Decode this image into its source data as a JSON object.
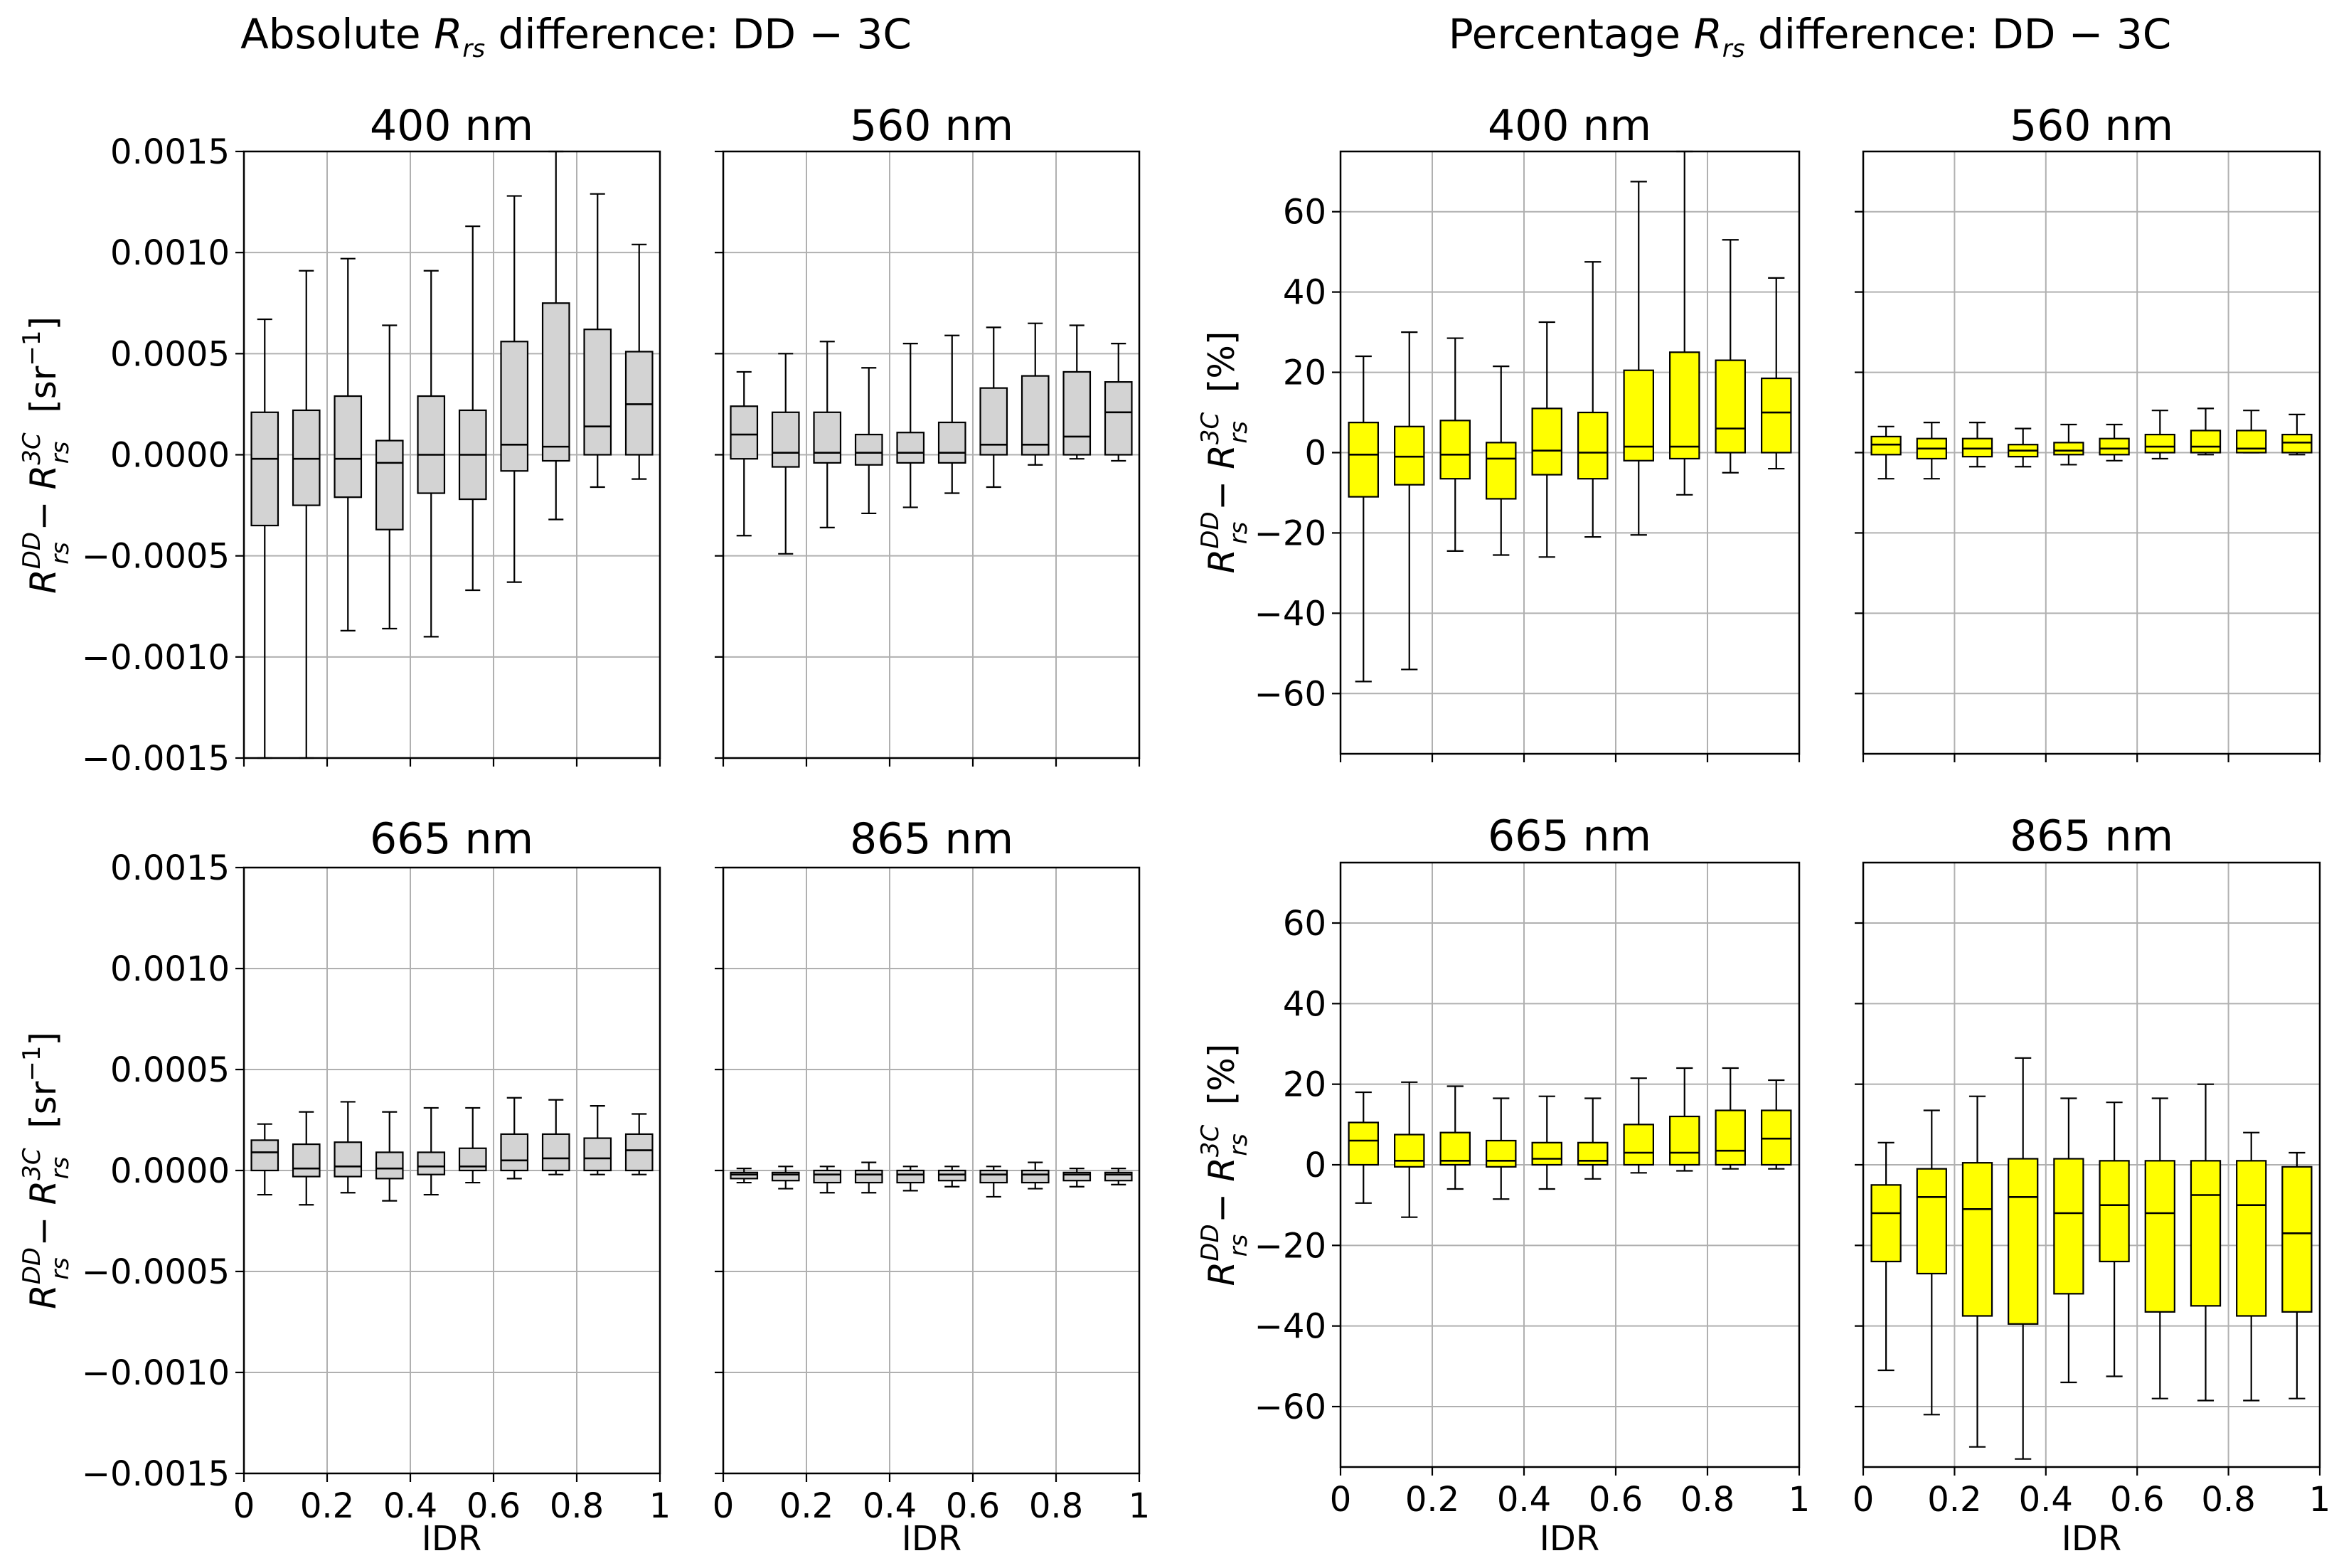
{
  "left_title": {
    "prefix": "Absolute ",
    "var": "R",
    "sub": "rs",
    "suffix": " difference: DD − 3C"
  },
  "right_title": {
    "prefix": "Percentage ",
    "var": "R",
    "sub": "rs",
    "suffix": " difference: DD − 3C"
  },
  "abs_ylabel": {
    "unit": "[sr",
    "exp": "−1",
    "close": "]"
  },
  "pct_ylabel": {
    "unit": "[%]"
  },
  "ylabel_math": {
    "R": "R",
    "sup1": "DD",
    "sub": "rs",
    "minus": " − ",
    "sup2": "3C"
  },
  "xlabel": "IDR",
  "colors": {
    "abs_box": "#d3d3d3",
    "pct_box": "#ffff00"
  },
  "chart_data": [
    {
      "type": "boxplot",
      "group": "absolute",
      "title": "400 nm",
      "ylim": [
        -0.0015,
        0.0015
      ],
      "yticks": [
        -0.0015,
        -0.001,
        -0.0005,
        0.0,
        0.0005,
        0.001,
        0.0015
      ],
      "ytick_labels": [
        "−0.0015",
        "−0.0010",
        "−0.0005",
        "0.0000",
        "0.0005",
        "0.0010",
        "0.0015"
      ],
      "xlim": [
        0,
        1
      ],
      "xticks": [
        0,
        0.2,
        0.4,
        0.6,
        0.8,
        1
      ],
      "xtick_labels": [
        "0",
        "0.2",
        "0.4",
        "0.6",
        "0.8",
        "1"
      ],
      "x": [
        0.05,
        0.15,
        0.25,
        0.35,
        0.45,
        0.55,
        0.65,
        0.75,
        0.85,
        0.95
      ],
      "whislo": [
        -0.0015,
        -0.0015,
        -0.00087,
        -0.00086,
        -0.0009,
        -0.00067,
        -0.00063,
        -0.00032,
        -0.00016,
        -0.00012
      ],
      "q1": [
        -0.00035,
        -0.00025,
        -0.00021,
        -0.00037,
        -0.00019,
        -0.00022,
        -8e-05,
        -3e-05,
        0.0,
        0.0
      ],
      "med": [
        -2e-05,
        -2e-05,
        -2e-05,
        -4e-05,
        0.0,
        0.0,
        5e-05,
        4e-05,
        0.00014,
        0.00025
      ],
      "q3": [
        0.00021,
        0.00022,
        0.00029,
        7e-05,
        0.00029,
        0.00022,
        0.00056,
        0.00075,
        0.00062,
        0.00051
      ],
      "whishi": [
        0.00067,
        0.00091,
        0.00097,
        0.00064,
        0.00091,
        0.00113,
        0.00128,
        0.0015,
        0.00129,
        0.00104
      ],
      "xlabel": "",
      "ylabel": "R_rs^DD − R_rs^3C [sr^-1]"
    },
    {
      "type": "boxplot",
      "group": "absolute",
      "title": "560 nm",
      "ylim": [
        -0.0015,
        0.0015
      ],
      "xlim": [
        0,
        1
      ],
      "xticks": [
        0,
        0.2,
        0.4,
        0.6,
        0.8,
        1
      ],
      "xtick_labels": [
        "0",
        "0.2",
        "0.4",
        "0.6",
        "0.8",
        "1"
      ],
      "x": [
        0.05,
        0.15,
        0.25,
        0.35,
        0.45,
        0.55,
        0.65,
        0.75,
        0.85,
        0.95
      ],
      "whislo": [
        -0.0004,
        -0.00049,
        -0.00036,
        -0.00029,
        -0.00026,
        -0.00019,
        -0.00016,
        -5e-05,
        -2e-05,
        -3e-05
      ],
      "q1": [
        -2e-05,
        -6e-05,
        -4e-05,
        -5e-05,
        -4e-05,
        -4e-05,
        0.0,
        0.0,
        0.0,
        0.0
      ],
      "med": [
        0.0001,
        1e-05,
        1e-05,
        1e-05,
        1e-05,
        1e-05,
        5e-05,
        5e-05,
        9e-05,
        0.00021
      ],
      "q3": [
        0.00024,
        0.00021,
        0.00021,
        0.0001,
        0.00011,
        0.00016,
        0.00033,
        0.00039,
        0.00041,
        0.00036
      ],
      "whishi": [
        0.00041,
        0.0005,
        0.00056,
        0.00043,
        0.00055,
        0.00059,
        0.00063,
        0.00065,
        0.00064,
        0.00055
      ],
      "xlabel": "",
      "ylabel": ""
    },
    {
      "type": "boxplot",
      "group": "absolute",
      "title": "665 nm",
      "ylim": [
        -0.0015,
        0.0015
      ],
      "yticks": [
        -0.0015,
        -0.001,
        -0.0005,
        0.0,
        0.0005,
        0.001,
        0.0015
      ],
      "ytick_labels": [
        "−0.0015",
        "−0.0010",
        "−0.0005",
        "0.0000",
        "0.0005",
        "0.0010",
        "0.0015"
      ],
      "xlim": [
        0,
        1
      ],
      "xticks": [
        0,
        0.2,
        0.4,
        0.6,
        0.8,
        1
      ],
      "xtick_labels": [
        "0",
        "0.2",
        "0.4",
        "0.6",
        "0.8",
        "1"
      ],
      "x": [
        0.05,
        0.15,
        0.25,
        0.35,
        0.45,
        0.55,
        0.65,
        0.75,
        0.85,
        0.95
      ],
      "whislo": [
        -0.00012,
        -0.00017,
        -0.00011,
        -0.00015,
        -0.00012,
        -6e-05,
        -4e-05,
        -2e-05,
        -2e-05,
        -2e-05
      ],
      "q1": [
        0.0,
        -3e-05,
        -3e-05,
        -4e-05,
        -2e-05,
        0.0,
        0.0,
        0.0,
        0.0,
        0.0
      ],
      "med": [
        9e-05,
        1e-05,
        2e-05,
        1e-05,
        2e-05,
        2e-05,
        5e-05,
        6e-05,
        6e-05,
        0.0001
      ],
      "q3": [
        0.00015,
        0.00013,
        0.00014,
        9e-05,
        9e-05,
        0.00011,
        0.00018,
        0.00018,
        0.00016,
        0.00018
      ],
      "whishi": [
        0.00023,
        0.00029,
        0.00034,
        0.00029,
        0.00031,
        0.00031,
        0.00036,
        0.00035,
        0.00032,
        0.00028
      ],
      "xlabel": "IDR",
      "ylabel": "R_rs^DD − R_rs^3C [sr^-1]"
    },
    {
      "type": "boxplot",
      "group": "absolute",
      "title": "865 nm",
      "ylim": [
        -0.0015,
        0.0015
      ],
      "xlim": [
        0,
        1
      ],
      "xticks": [
        0,
        0.2,
        0.4,
        0.6,
        0.8,
        1
      ],
      "xtick_labels": [
        "0",
        "0.2",
        "0.4",
        "0.6",
        "0.8",
        "1"
      ],
      "x": [
        0.05,
        0.15,
        0.25,
        0.35,
        0.45,
        0.55,
        0.65,
        0.75,
        0.85,
        0.95
      ],
      "whislo": [
        -6e-05,
        -9e-05,
        -0.00011,
        -0.00011,
        -0.0001,
        -8e-05,
        -0.00013,
        -9e-05,
        -8e-05,
        -7e-05
      ],
      "q1": [
        -4e-05,
        -5e-05,
        -6e-05,
        -6e-05,
        -6e-05,
        -5e-05,
        -6e-05,
        -6e-05,
        -5e-05,
        -5e-05
      ],
      "med": [
        -2e-05,
        -2e-05,
        -2e-05,
        -2e-05,
        -2e-05,
        -2e-05,
        -2e-05,
        -2e-05,
        -2e-05,
        -2e-05
      ],
      "q3": [
        -1e-05,
        -1e-05,
        0.0,
        0.0,
        0.0,
        0.0,
        0.0,
        0.0,
        -1e-05,
        -1e-05
      ],
      "whishi": [
        1e-05,
        2e-05,
        2e-05,
        4e-05,
        2e-05,
        2e-05,
        2e-05,
        4e-05,
        1e-05,
        1e-05
      ],
      "xlabel": "IDR",
      "ylabel": ""
    },
    {
      "type": "boxplot",
      "group": "percentage",
      "title": "400 nm",
      "ylim": [
        -75,
        75
      ],
      "yticks": [
        -60,
        -40,
        -20,
        0,
        20,
        40,
        60
      ],
      "ytick_labels": [
        "−60",
        "−40",
        "−20",
        "0",
        "20",
        "40",
        "60"
      ],
      "xlim": [
        0,
        1
      ],
      "xticks": [
        0,
        0.2,
        0.4,
        0.6,
        0.8,
        1
      ],
      "xtick_labels": [
        "0",
        "0.2",
        "0.4",
        "0.6",
        "0.8",
        "1"
      ],
      "x": [
        0.05,
        0.15,
        0.25,
        0.35,
        0.45,
        0.55,
        0.65,
        0.75,
        0.85,
        0.95
      ],
      "whislo": [
        -57,
        -54,
        -24.5,
        -25.5,
        -26,
        -21,
        -20.5,
        -10.5,
        -5,
        -4
      ],
      "q1": [
        -11,
        -8,
        -6.5,
        -11.5,
        -5.5,
        -6.5,
        -2,
        -1.5,
        0,
        0
      ],
      "med": [
        -0.5,
        -1,
        -0.5,
        -1.5,
        0.5,
        0,
        1.5,
        1.5,
        6,
        10
      ],
      "q3": [
        7.5,
        6.5,
        8,
        2.5,
        11,
        10,
        20.5,
        25,
        23,
        18.5
      ],
      "whishi": [
        24,
        30,
        28.5,
        21.5,
        32.5,
        47.5,
        67.5,
        75,
        53,
        43.5
      ],
      "xlabel": "",
      "ylabel": "R_rs^DD − R_rs^3C [%]"
    },
    {
      "type": "boxplot",
      "group": "percentage",
      "title": "560 nm",
      "ylim": [
        -75,
        75
      ],
      "xlim": [
        0,
        1
      ],
      "xticks": [
        0,
        0.2,
        0.4,
        0.6,
        0.8,
        1
      ],
      "xtick_labels": [
        "0",
        "0.2",
        "0.4",
        "0.6",
        "0.8",
        "1"
      ],
      "x": [
        0.05,
        0.15,
        0.25,
        0.35,
        0.45,
        0.55,
        0.65,
        0.75,
        0.85,
        0.95
      ],
      "whislo": [
        -6.5,
        -6.5,
        -3.5,
        -3.5,
        -3,
        -2,
        -1.5,
        -0.5,
        0,
        -0.5
      ],
      "q1": [
        -0.5,
        -1.5,
        -1,
        -1,
        -0.5,
        -0.5,
        0,
        0,
        0,
        0
      ],
      "med": [
        2,
        1,
        1,
        0.5,
        0.5,
        1,
        1.5,
        1.5,
        1,
        2.5
      ],
      "q3": [
        4,
        3.5,
        3.5,
        2,
        2.5,
        3.5,
        4.5,
        5.5,
        5.5,
        4.5
      ],
      "whishi": [
        6.5,
        7.5,
        7.5,
        6,
        7,
        7,
        10.5,
        11,
        10.5,
        9.5
      ],
      "xlabel": "",
      "ylabel": ""
    },
    {
      "type": "boxplot",
      "group": "percentage",
      "title": "665 nm",
      "ylim": [
        -75,
        75
      ],
      "yticks": [
        -60,
        -40,
        -20,
        0,
        20,
        40,
        60
      ],
      "ytick_labels": [
        "−60",
        "−40",
        "−20",
        "0",
        "20",
        "40",
        "60"
      ],
      "xlim": [
        0,
        1
      ],
      "xticks": [
        0,
        0.2,
        0.4,
        0.6,
        0.8,
        1
      ],
      "xtick_labels": [
        "0",
        "0.2",
        "0.4",
        "0.6",
        "0.8",
        "1"
      ],
      "x": [
        0.05,
        0.15,
        0.25,
        0.35,
        0.45,
        0.55,
        0.65,
        0.75,
        0.85,
        0.95
      ],
      "whislo": [
        -9.5,
        -13,
        -6,
        -8.5,
        -6,
        -3.5,
        -2,
        -1.5,
        -1,
        -1
      ],
      "q1": [
        0,
        -0.5,
        0,
        -0.5,
        0,
        0,
        0,
        0,
        0,
        0
      ],
      "med": [
        6,
        1,
        1,
        1,
        1.5,
        1,
        3,
        3,
        3.5,
        6.5
      ],
      "q3": [
        10.5,
        7.5,
        8,
        6,
        5.5,
        5.5,
        10,
        12,
        13.5,
        13.5
      ],
      "whishi": [
        18,
        20.5,
        19.5,
        16.5,
        17,
        16.5,
        21.5,
        24,
        24,
        21
      ],
      "xlabel": "IDR",
      "ylabel": "R_rs^DD − R_rs^3C [%]"
    },
    {
      "type": "boxplot",
      "group": "percentage",
      "title": "865 nm",
      "ylim": [
        -75,
        75
      ],
      "xlim": [
        0,
        1
      ],
      "xticks": [
        0,
        0.2,
        0.4,
        0.6,
        0.8,
        1
      ],
      "xtick_labels": [
        "0",
        "0.2",
        "0.4",
        "0.6",
        "0.8",
        "1"
      ],
      "x": [
        0.05,
        0.15,
        0.25,
        0.35,
        0.45,
        0.55,
        0.65,
        0.75,
        0.85,
        0.95
      ],
      "whislo": [
        -51,
        -62,
        -70,
        -73,
        -54,
        -52.5,
        -58,
        -58.5,
        -58.5,
        -58
      ],
      "q1": [
        -24,
        -27,
        -37.5,
        -39.5,
        -32,
        -24,
        -36.5,
        -35,
        -37.5,
        -36.5
      ],
      "med": [
        -12,
        -8,
        -11,
        -8,
        -12,
        -10,
        -12,
        -7.5,
        -10,
        -17
      ],
      "q3": [
        -5,
        -1,
        0.5,
        1.5,
        1.5,
        1,
        1,
        1,
        1,
        -0.5
      ],
      "whishi": [
        5.5,
        13.5,
        17,
        26.5,
        16.5,
        15.5,
        16.5,
        20,
        8,
        3
      ],
      "xlabel": "IDR",
      "ylabel": ""
    }
  ]
}
